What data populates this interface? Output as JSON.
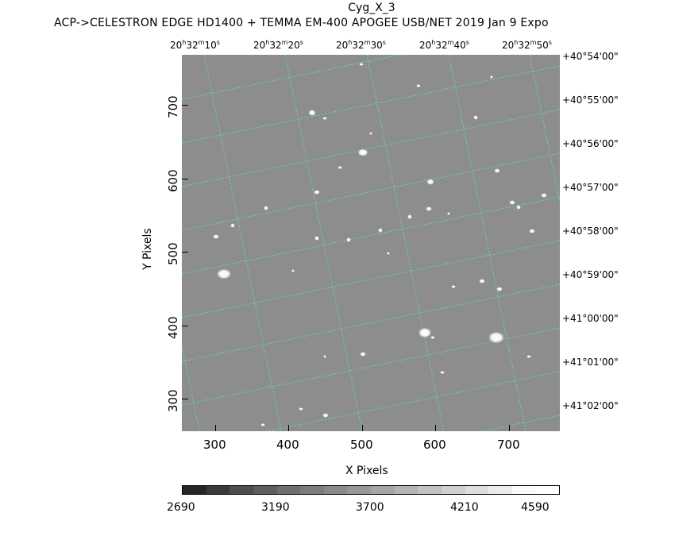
{
  "title": "Cyg_X_3",
  "subtitle": "ACP->CELESTRON EDGE HD1400 + TEMMA EM-400 APOGEE USB/NET   2019 Jan  9    Expo",
  "ra_labels": [
    {
      "h": "20",
      "m": "32",
      "s": "10"
    },
    {
      "h": "20",
      "m": "32",
      "s": "20"
    },
    {
      "h": "20",
      "m": "32",
      "s": "30"
    },
    {
      "h": "20",
      "m": "32",
      "s": "40"
    },
    {
      "h": "20",
      "m": "32",
      "s": "50"
    }
  ],
  "dec_labels": [
    "+40°54'00\"",
    "+40°55'00\"",
    "+40°56'00\"",
    "+40°57'00\"",
    "+40°58'00\"",
    "+40°59'00\"",
    "+41°00'00\"",
    "+41°01'00\"",
    "+41°02'00\""
  ],
  "y_axis": {
    "title": "Y Pixels",
    "ticks": [
      "700",
      "600",
      "500",
      "400",
      "300"
    ]
  },
  "x_axis": {
    "title": "X Pixels",
    "ticks": [
      "300",
      "400",
      "500",
      "600",
      "700"
    ]
  },
  "colorbar": {
    "labels": [
      "2690",
      "3190",
      "3700",
      "4210",
      "4590"
    ],
    "colors": [
      "#262626",
      "#3a3a3a",
      "#4e4e4e",
      "#5e5e5e",
      "#6e6e6e",
      "#7c7c7c",
      "#8a8a8a",
      "#989898",
      "#a6a6a6",
      "#b4b4b4",
      "#c2c2c2",
      "#d0d0d0",
      "#dedede",
      "#ececec",
      "#fafafa",
      "#ffffff"
    ]
  },
  "colors": {
    "grid": "#5fd3d3",
    "sky": "#8d8d8d",
    "star": "#ffffff"
  }
}
